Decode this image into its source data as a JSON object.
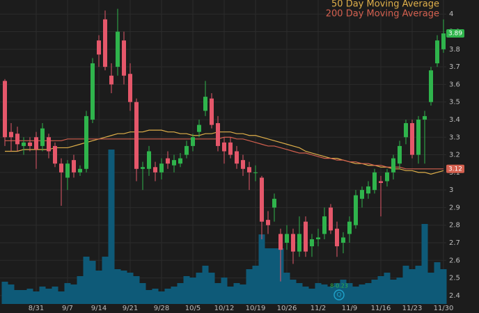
{
  "chart_data": {
    "type": "candlestick",
    "categories": [
      null,
      null,
      null,
      null,
      null,
      "8/31",
      null,
      null,
      null,
      null,
      "9/7",
      null,
      null,
      null,
      null,
      "9/14",
      null,
      null,
      null,
      null,
      "9/21",
      null,
      null,
      null,
      null,
      "9/28",
      null,
      null,
      null,
      null,
      "10/5",
      null,
      null,
      null,
      null,
      "10/12",
      null,
      null,
      null,
      null,
      "10/19",
      null,
      null,
      null,
      null,
      "10/26",
      null,
      null,
      null,
      null,
      "11/2",
      null,
      null,
      null,
      null,
      "11/9",
      null,
      null,
      null,
      null,
      "11/16",
      null,
      null,
      null,
      null,
      "11/23",
      null,
      null,
      null,
      null,
      "11/30"
    ],
    "open": [
      3.62,
      3.33,
      3.32,
      3.25,
      3.27,
      3.3,
      3.25,
      3.3,
      3.25,
      3.15,
      3.07,
      3.17,
      3.1,
      3.12,
      3.4,
      3.85,
      3.97,
      3.65,
      3.7,
      3.85,
      3.66,
      3.5,
      3.12,
      3.12,
      3.13,
      3.1,
      3.18,
      3.14,
      3.15,
      3.2,
      3.25,
      3.33,
      3.45,
      3.52,
      3.38,
      3.27,
      3.27,
      3.22,
      3.17,
      3.13,
      3.1,
      3.07,
      2.83,
      2.9,
      2.75,
      2.7,
      2.75,
      2.65,
      2.82,
      2.68,
      2.72,
      2.75,
      2.9,
      2.78,
      2.7,
      2.75,
      2.8,
      2.95,
      2.98,
      3.0,
      3.05,
      3.05,
      3.1,
      3.15,
      3.3,
      3.38,
      3.2,
      3.4,
      3.5,
      3.72,
      3.8
    ],
    "high": [
      3.63,
      3.38,
      3.36,
      3.3,
      3.3,
      3.33,
      3.38,
      3.32,
      3.27,
      3.18,
      3.17,
      3.2,
      3.14,
      3.45,
      3.75,
      3.88,
      4.02,
      3.72,
      4.03,
      3.9,
      3.72,
      3.52,
      3.16,
      3.25,
      3.16,
      3.18,
      3.22,
      3.2,
      3.21,
      3.28,
      3.32,
      3.4,
      3.62,
      3.55,
      3.42,
      3.3,
      3.3,
      3.25,
      3.2,
      3.16,
      3.14,
      3.08,
      2.88,
      2.98,
      2.78,
      2.8,
      2.78,
      2.85,
      2.85,
      2.75,
      2.78,
      2.9,
      2.92,
      2.82,
      2.76,
      2.85,
      3.0,
      3.02,
      3.05,
      3.12,
      3.08,
      3.12,
      3.2,
      3.28,
      3.4,
      3.4,
      3.42,
      3.45,
      3.7,
      3.88,
      3.97
    ],
    "low": [
      3.25,
      3.22,
      3.22,
      3.2,
      3.22,
      3.12,
      3.22,
      3.18,
      3.13,
      2.91,
      3.0,
      3.07,
      3.08,
      3.1,
      3.38,
      3.7,
      3.68,
      3.55,
      3.65,
      3.6,
      3.45,
      3.05,
      3.0,
      3.08,
      3.05,
      3.06,
      3.12,
      3.1,
      3.13,
      3.18,
      3.22,
      3.3,
      3.42,
      3.35,
      3.22,
      3.15,
      3.18,
      3.12,
      3.08,
      3.0,
      3.05,
      2.72,
      2.75,
      2.82,
      2.48,
      2.66,
      2.58,
      2.62,
      2.62,
      2.62,
      2.68,
      2.72,
      2.75,
      2.62,
      2.64,
      2.7,
      2.78,
      2.9,
      2.95,
      2.98,
      2.85,
      3.02,
      3.06,
      3.12,
      3.26,
      3.18,
      3.15,
      3.15,
      3.48,
      3.7,
      3.78
    ],
    "close": [
      3.3,
      3.3,
      3.26,
      3.27,
      3.25,
      3.23,
      3.35,
      3.22,
      3.15,
      3.1,
      3.15,
      3.1,
      3.12,
      3.42,
      3.72,
      3.77,
      3.7,
      3.6,
      3.9,
      3.65,
      3.5,
      3.12,
      3.13,
      3.22,
      3.1,
      3.15,
      3.15,
      3.17,
      3.18,
      3.25,
      3.3,
      3.37,
      3.53,
      3.37,
      3.25,
      3.22,
      3.2,
      3.15,
      3.12,
      3.1,
      3.1,
      2.82,
      2.8,
      2.95,
      2.66,
      2.75,
      2.65,
      2.75,
      2.65,
      2.72,
      2.73,
      2.85,
      2.77,
      2.68,
      2.73,
      2.82,
      2.97,
      3.0,
      3.02,
      3.1,
      3.04,
      3.1,
      3.18,
      3.25,
      3.38,
      3.2,
      3.4,
      3.42,
      3.68,
      3.85,
      3.89
    ],
    "volume": [
      32,
      28,
      20,
      20,
      22,
      18,
      25,
      22,
      25,
      18,
      30,
      28,
      40,
      68,
      62,
      48,
      68,
      222,
      50,
      48,
      45,
      40,
      30,
      20,
      22,
      18,
      22,
      25,
      30,
      40,
      38,
      45,
      55,
      45,
      30,
      38,
      25,
      30,
      28,
      50,
      55,
      100,
      80,
      80,
      80,
      45,
      35,
      30,
      25,
      22,
      30,
      28,
      25,
      30,
      35,
      30,
      25,
      28,
      30,
      35,
      40,
      45,
      35,
      38,
      55,
      50,
      55,
      115,
      45,
      60,
      50
    ],
    "volume_ylim": [
      0,
      250
    ],
    "volume_color": "#0e5a78",
    "up_color": "#2fb44c",
    "down_color": "#e5576a",
    "series": [
      {
        "name": "50 Day Moving Average",
        "color": "#e0b04a",
        "values": [
          3.22,
          3.22,
          3.22,
          3.23,
          3.23,
          3.23,
          3.23,
          3.23,
          3.24,
          3.24,
          3.24,
          3.25,
          3.26,
          3.27,
          3.28,
          3.29,
          3.3,
          3.31,
          3.32,
          3.32,
          3.33,
          3.33,
          3.33,
          3.34,
          3.34,
          3.34,
          3.33,
          3.33,
          3.32,
          3.32,
          3.31,
          3.31,
          3.32,
          3.32,
          3.33,
          3.33,
          3.33,
          3.32,
          3.32,
          3.31,
          3.31,
          3.3,
          3.29,
          3.28,
          3.27,
          3.26,
          3.25,
          3.24,
          3.22,
          3.21,
          3.2,
          3.19,
          3.18,
          3.18,
          3.17,
          3.16,
          3.15,
          3.15,
          3.14,
          3.14,
          3.13,
          3.13,
          3.12,
          3.12,
          3.11,
          3.11,
          3.1,
          3.1,
          3.09,
          3.1,
          3.11
        ]
      },
      {
        "name": "200 Day Moving Average",
        "color": "#d4604f",
        "values": [
          3.28,
          3.28,
          3.28,
          3.28,
          3.28,
          3.28,
          3.28,
          3.28,
          3.28,
          3.28,
          3.29,
          3.29,
          3.29,
          3.29,
          3.29,
          3.29,
          3.29,
          3.29,
          3.29,
          3.29,
          3.29,
          3.29,
          3.29,
          3.29,
          3.29,
          3.29,
          3.29,
          3.29,
          3.29,
          3.29,
          3.29,
          3.29,
          3.29,
          3.29,
          3.29,
          3.3,
          3.3,
          3.29,
          3.29,
          3.28,
          3.27,
          3.26,
          3.25,
          3.25,
          3.24,
          3.23,
          3.22,
          3.21,
          3.21,
          3.2,
          3.19,
          3.18,
          3.18,
          3.17,
          3.17,
          3.16,
          3.16,
          3.15,
          3.15,
          3.14,
          3.14,
          3.13,
          3.13,
          3.13,
          3.12,
          3.12,
          3.12,
          3.12,
          3.12,
          3.12,
          3.12
        ]
      }
    ],
    "annotation": "8-0.23",
    "ylim": [
      2.36,
      4.08
    ],
    "yticks": [
      2.4,
      2.5,
      2.6,
      2.7,
      2.8,
      2.9,
      3,
      3.1,
      3.2,
      3.3,
      3.4,
      3.5,
      3.6,
      3.7,
      3.8,
      3.9,
      4
    ],
    "grid": true,
    "legend_position": "top-right"
  }
}
